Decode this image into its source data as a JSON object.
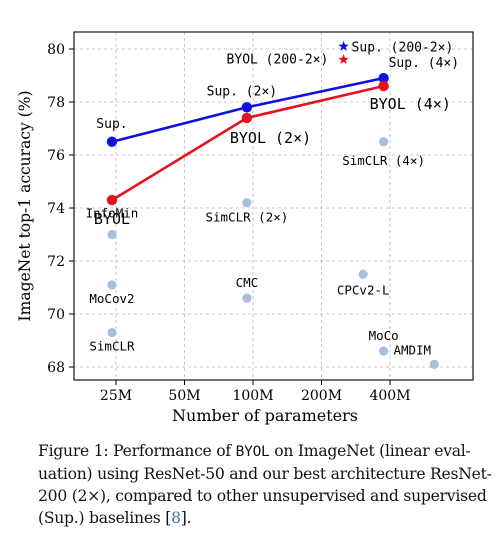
{
  "chart_data": {
    "type": "scatter",
    "xlabel": "Number of parameters",
    "ylabel": "ImageNet top-1 accuracy (%)",
    "xscale": "log",
    "x_ticks": [
      "25M",
      "50M",
      "100M",
      "200M",
      "400M"
    ],
    "ylim": [
      67.5,
      80.7
    ],
    "y_ticks": [
      68,
      70,
      72,
      74,
      76,
      78,
      80
    ],
    "grid": true,
    "points": [
      {
        "label": "InfoMin",
        "params_m": 24,
        "acc": 73.0
      },
      {
        "label": "MoCov2",
        "params_m": 24,
        "acc": 71.1
      },
      {
        "label": "SimCLR",
        "params_m": 24,
        "acc": 69.3
      },
      {
        "label": "SimCLR (2×)",
        "params_m": 94,
        "acc": 74.2
      },
      {
        "label": "CMC",
        "params_m": 94,
        "acc": 70.6
      },
      {
        "label": "CPCv2-L",
        "params_m": 305,
        "acc": 71.5
      },
      {
        "label": "SimCLR (4×)",
        "params_m": 375,
        "acc": 76.5
      },
      {
        "label": "MoCo",
        "params_m": 375,
        "acc": 68.6
      },
      {
        "label": "AMDIM",
        "params_m": 626,
        "acc": 68.1
      }
    ],
    "series": [
      {
        "name": "Sup.",
        "color": "#1010e0",
        "points": [
          {
            "label": "Sup.",
            "params_m": 24,
            "acc": 76.5
          },
          {
            "label": "Sup. (2×)",
            "params_m": 94,
            "acc": 77.8
          },
          {
            "label": "Sup. (4×)",
            "params_m": 375,
            "acc": 78.9
          }
        ]
      },
      {
        "name": "BYOL",
        "color": "#e8101e",
        "points": [
          {
            "label": "BYOL",
            "params_m": 24,
            "acc": 74.3
          },
          {
            "label": "BYOL (2×)",
            "params_m": 94,
            "acc": 77.4
          },
          {
            "label": "BYOL (4×)",
            "params_m": 375,
            "acc": 78.6
          }
        ]
      }
    ],
    "stars": [
      {
        "label": "Sup. (200-2×)",
        "params_m": 250,
        "acc": 80.1,
        "color": "#1010e0"
      },
      {
        "label": "BYOL (200-2×)",
        "params_m": 250,
        "acc": 79.6,
        "color": "#e8101e"
      }
    ],
    "other_color": "#a8bede"
  },
  "caption": {
    "l1_a": "Figure 1: Performance of ",
    "l1_b": "BYOL",
    "l1_c": " on ImageNet (linear eval-",
    "l2": "uation) using ResNet-50 and our best architecture ResNet-",
    "l3": "200 (2×), compared to other unsupervised and supervised",
    "l4_a": "(Sup.) baselines [",
    "l4_b": "8",
    "l4_c": "]."
  }
}
